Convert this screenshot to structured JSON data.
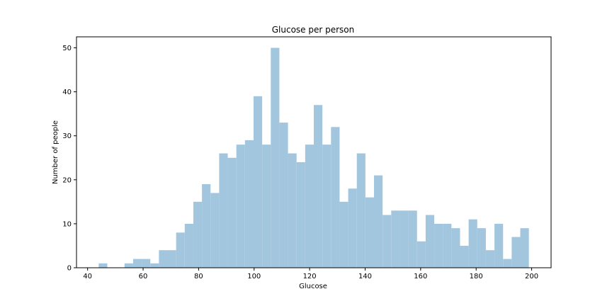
{
  "chart_data": {
    "type": "bar",
    "title": "Glucose per person",
    "xlabel": "Glucose",
    "ylabel": "Number of people",
    "xlim": [
      36,
      207
    ],
    "ylim": [
      0,
      52.5
    ],
    "xticks": [
      40,
      60,
      80,
      100,
      120,
      140,
      160,
      180,
      200
    ],
    "yticks": [
      0,
      10,
      20,
      30,
      40,
      50
    ],
    "bin_width": 3.1,
    "bin_start": 44,
    "values": [
      1,
      0,
      0,
      1,
      2,
      2,
      1,
      4,
      4,
      8,
      10,
      15,
      19,
      17,
      26,
      25,
      28,
      29,
      39,
      28,
      50,
      33,
      26,
      24,
      28,
      37,
      28,
      32,
      15,
      18,
      26,
      16,
      21,
      12,
      13,
      13,
      13,
      6,
      12,
      10,
      10,
      9,
      5,
      11,
      9,
      4,
      10,
      2,
      7,
      9
    ],
    "bar_color": "#a3c6df",
    "grid": false
  }
}
